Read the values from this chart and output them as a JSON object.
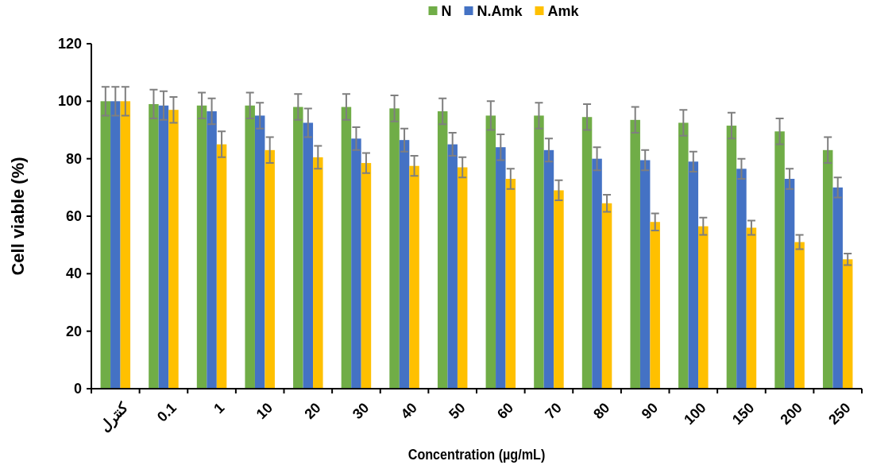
{
  "chart_data": {
    "type": "bar",
    "xlabel": "Concentration (µg/mL)",
    "ylabel": "Cell viable (%)",
    "categories": [
      "كنترل",
      "0.1",
      "1",
      "10",
      "20",
      "30",
      "40",
      "50",
      "60",
      "70",
      "80",
      "90",
      "100",
      "150",
      "200",
      "250"
    ],
    "ylim": [
      0,
      120
    ],
    "yticks": [
      0,
      20,
      40,
      60,
      80,
      100,
      120
    ],
    "grid": false,
    "legend": "top",
    "series": [
      {
        "name": "N",
        "color": "#70ad47",
        "values": [
          100,
          99,
          98.5,
          98.5,
          98,
          98,
          97.5,
          96.5,
          95,
          95,
          94.5,
          93.5,
          92.5,
          91.5,
          89.5,
          83
        ],
        "errors": [
          5,
          5,
          4.5,
          4.5,
          4.5,
          4.5,
          4.5,
          4.5,
          5,
          4.5,
          4.5,
          4.5,
          4.5,
          4.5,
          4.5,
          4.5
        ]
      },
      {
        "name": "N.Amk",
        "color": "#4472c4",
        "values": [
          100,
          98.5,
          96.5,
          95,
          92.5,
          87,
          86.5,
          85,
          84,
          83,
          80,
          79.5,
          79,
          76.5,
          73,
          70
        ],
        "errors": [
          5,
          5,
          4.5,
          4.5,
          5,
          4,
          4,
          4,
          4.5,
          4,
          4,
          3.5,
          3.5,
          3.5,
          3.5,
          3.5
        ]
      },
      {
        "name": "Amk",
        "color": "#ffc000",
        "values": [
          100,
          97,
          85,
          83,
          80.5,
          78.5,
          77.5,
          77,
          73,
          69,
          64.5,
          58,
          56.5,
          56,
          51,
          45
        ],
        "errors": [
          5,
          4.5,
          4.5,
          4.5,
          4,
          3.5,
          3.5,
          3.5,
          3.5,
          3.5,
          3,
          3,
          3,
          2.5,
          2.5,
          2
        ]
      }
    ]
  }
}
